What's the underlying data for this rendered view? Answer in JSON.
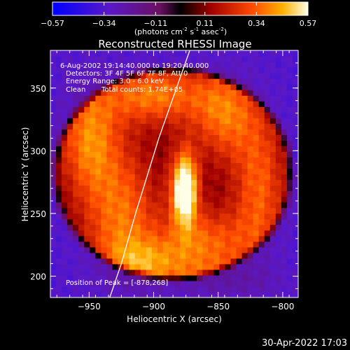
{
  "chart_data": {
    "type": "heatmap",
    "title": "Reconstructed RHESSI Image",
    "xlabel": "Heliocentric X (arcsec)",
    "ylabel": "Heliocentric Y (arcsec)",
    "xlim": [
      -980,
      -788
    ],
    "ylim": [
      183,
      380
    ],
    "xticks": [
      -950,
      -900,
      -850,
      -800
    ],
    "yticks": [
      200,
      250,
      300,
      350
    ],
    "colorbar": {
      "ticks": [
        "-0.57",
        "-0.34",
        "-0.11",
        "0.11",
        "0.34",
        "0.57"
      ],
      "label": "(photons cm",
      "label_exp1": "-2",
      "label_mid": " s",
      "label_exp2": "-1",
      "label_mid2": " asec",
      "label_exp3": "-2",
      "label_end": ")"
    },
    "annotations": {
      "time_range": "6-Aug-2002 19:14:40.000 to 19:20:40.000",
      "detectors": "Detectors: 3F 4F 5F 6F 7F 8F, Att 0",
      "energy": "Energy Range: 3.0 - 6.0 keV",
      "clean": "Clean",
      "total_counts": "Total counts: 1.74E+05",
      "peak": "Position of Peak = [-878,268]"
    },
    "peak": [
      -878,
      268
    ],
    "limb_points": [
      [
        -934,
        183
      ],
      [
        -925,
        210
      ],
      [
        -914,
        250
      ],
      [
        -905,
        280
      ],
      [
        -896,
        310
      ],
      [
        -884,
        345
      ],
      [
        -872,
        380
      ]
    ],
    "blobs": [
      {
        "x": -876,
        "y": 270,
        "sx": 7,
        "sy": 20,
        "amp": 0.62
      },
      {
        "x": -950,
        "y": 310,
        "sx": 16,
        "sy": 32,
        "amp": 0.3
      },
      {
        "x": -925,
        "y": 245,
        "sx": 20,
        "sy": 40,
        "amp": 0.28
      },
      {
        "x": -900,
        "y": 345,
        "sx": 28,
        "sy": 16,
        "amp": 0.3
      },
      {
        "x": -845,
        "y": 330,
        "sx": 18,
        "sy": 26,
        "amp": 0.28
      },
      {
        "x": -818,
        "y": 270,
        "sx": 14,
        "sy": 42,
        "amp": 0.25
      },
      {
        "x": -860,
        "y": 225,
        "sx": 26,
        "sy": 20,
        "amp": 0.27
      },
      {
        "x": -905,
        "y": 210,
        "sx": 22,
        "sy": 14,
        "amp": 0.22
      },
      {
        "x": -840,
        "y": 195,
        "sx": 30,
        "sy": 10,
        "amp": 0.2
      }
    ],
    "base_level": 0.08,
    "background_level": -0.34,
    "ring_center": [
      -885,
      282
    ],
    "ring_radii": [
      88,
      96
    ],
    "timestamp": "30-Apr-2022 17:03"
  }
}
